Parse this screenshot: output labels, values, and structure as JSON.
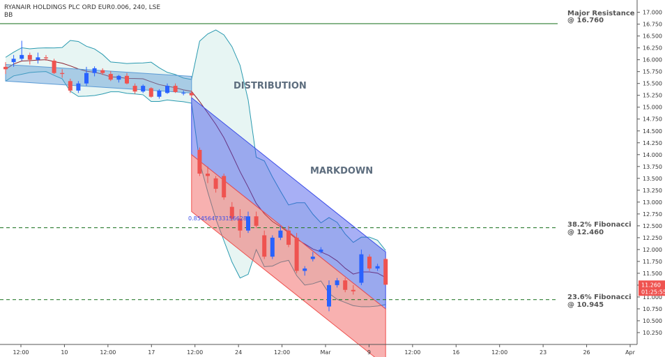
{
  "header": {
    "symbol_line": "RYANAIR HOLDINGS PLC ORD EUR0.006, 240, LSE",
    "indicator": "BB"
  },
  "annotations": {
    "distribution": "DISTRIBUTION",
    "markdown": "MARKDOWN",
    "ratio_label": "0.854564733156628"
  },
  "levels": [
    {
      "title": "Major Resistance",
      "value_label": "@ 16.760",
      "price": 16.76,
      "color": "#2e7d32",
      "style": "solid"
    },
    {
      "title": "38.2% Fibonacci",
      "value_label": "@ 12.460",
      "price": 12.46,
      "color": "#2e7d32",
      "style": "dashed"
    },
    {
      "title": "23.6% Fibonacci",
      "value_label": "@ 10.945",
      "price": 10.945,
      "color": "#2e7d32",
      "style": "dashed"
    }
  ],
  "price_tag": {
    "price": 11.26,
    "label": "11.260",
    "countdown": "01:25:55",
    "color": "#ef5350"
  },
  "colors": {
    "up": "#2962ff",
    "down": "#ef5350",
    "neutral": "#6b7a6e",
    "band_fill": "#e7f5f3",
    "band_line": "#2a9ab0",
    "basis": "#8b2232"
  },
  "chart_data": {
    "type": "candlestick",
    "title": "RYANAIR HOLDINGS PLC ORD EUR0.006, 240, LSE",
    "interval": "240",
    "exchange": "LSE",
    "ylim": [
      10.0,
      17.2
    ],
    "y_ticks": [
      "10.250",
      "10.500",
      "10.750",
      "11.000",
      "11.250",
      "11.500",
      "11.750",
      "12.000",
      "12.250",
      "12.500",
      "12.750",
      "13.000",
      "13.250",
      "13.500",
      "13.750",
      "14.000",
      "14.250",
      "14.500",
      "14.750",
      "15.000",
      "15.250",
      "15.500",
      "15.750",
      "16.000",
      "16.250",
      "16.500",
      "16.750",
      "17.000"
    ],
    "x_ticks": [
      "12:00",
      "10",
      "12:00",
      "17",
      "12:00",
      "24",
      "12:00",
      "Mar",
      "9",
      "12:00",
      "16",
      "12:00",
      "23",
      "26",
      "Apr"
    ],
    "indicator": "BB",
    "candles": [
      [
        15.85,
        15.95,
        15.7,
        15.8
      ],
      [
        15.95,
        16.1,
        15.85,
        16.02
      ],
      [
        16.02,
        16.4,
        15.98,
        16.1
      ],
      [
        16.1,
        16.15,
        15.9,
        16.0
      ],
      [
        16.0,
        16.15,
        15.92,
        16.05
      ],
      [
        16.05,
        16.1,
        15.98,
        16.03
      ],
      [
        15.98,
        16.02,
        15.7,
        15.72
      ],
      [
        15.72,
        15.8,
        15.62,
        15.7
      ],
      [
        15.55,
        15.6,
        15.3,
        15.35
      ],
      [
        15.35,
        15.55,
        15.3,
        15.5
      ],
      [
        15.5,
        15.85,
        15.45,
        15.72
      ],
      [
        15.72,
        15.86,
        15.65,
        15.82
      ],
      [
        15.78,
        15.82,
        15.68,
        15.72
      ],
      [
        15.7,
        15.76,
        15.55,
        15.58
      ],
      [
        15.58,
        15.68,
        15.52,
        15.66
      ],
      [
        15.66,
        15.72,
        15.48,
        15.5
      ],
      [
        15.45,
        15.5,
        15.28,
        15.33
      ],
      [
        15.33,
        15.48,
        15.3,
        15.45
      ],
      [
        15.4,
        15.42,
        15.2,
        15.22
      ],
      [
        15.22,
        15.38,
        15.18,
        15.35
      ],
      [
        15.3,
        15.5,
        15.28,
        15.45
      ],
      [
        15.45,
        15.5,
        15.3,
        15.32
      ],
      [
        15.3,
        15.35,
        15.25,
        15.3
      ],
      [
        15.3,
        15.35,
        15.2,
        15.25
      ],
      [
        14.1,
        14.15,
        13.55,
        13.6
      ],
      [
        13.6,
        13.75,
        13.4,
        13.55
      ],
      [
        13.5,
        13.55,
        13.2,
        13.28
      ],
      [
        13.55,
        13.6,
        13.05,
        13.1
      ],
      [
        12.9,
        13.0,
        12.6,
        12.65
      ],
      [
        12.65,
        12.85,
        12.25,
        12.4
      ],
      [
        12.4,
        12.8,
        12.35,
        12.7
      ],
      [
        12.7,
        12.8,
        12.45,
        12.5
      ],
      [
        12.3,
        12.4,
        11.8,
        11.85
      ],
      [
        11.85,
        12.3,
        11.8,
        12.25
      ],
      [
        12.25,
        12.5,
        12.2,
        12.4
      ],
      [
        12.4,
        12.5,
        12.05,
        12.1
      ],
      [
        12.25,
        12.35,
        11.5,
        11.55
      ],
      [
        11.55,
        11.65,
        11.45,
        11.6
      ],
      [
        11.8,
        11.95,
        11.75,
        11.85
      ],
      [
        11.95,
        12.05,
        11.92,
        12.0
      ],
      [
        10.8,
        11.35,
        10.7,
        11.25
      ],
      [
        11.25,
        11.4,
        11.2,
        11.35
      ],
      [
        11.35,
        11.4,
        11.1,
        11.15
      ],
      [
        11.15,
        11.25,
        11.05,
        11.12
      ],
      [
        11.3,
        12.0,
        11.25,
        11.9
      ],
      [
        11.85,
        11.9,
        11.55,
        11.6
      ],
      [
        11.6,
        11.7,
        11.55,
        11.65
      ],
      [
        11.8,
        11.82,
        11.25,
        11.26
      ]
    ],
    "channels": [
      {
        "name": "distribution range",
        "from": [
          0,
          15.9
        ],
        "to": [
          23,
          15.65
        ],
        "width": 0.35,
        "color": "#5b9bd5"
      },
      {
        "name": "markdown upper",
        "from": [
          23,
          15.2
        ],
        "to": [
          47,
          11.95
        ],
        "width": 1.2,
        "color": "#3b4de8"
      },
      {
        "name": "markdown lower",
        "from": [
          23,
          14.0
        ],
        "to": [
          47,
          10.75
        ],
        "width": 1.2,
        "color": "#ef5350"
      }
    ]
  }
}
